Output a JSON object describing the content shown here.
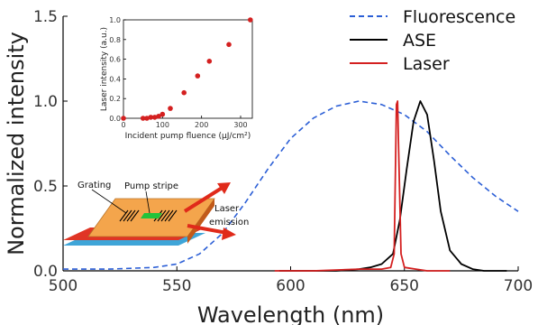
{
  "chart_data": [
    {
      "type": "line",
      "xlabel": "Wavelength (nm)",
      "ylabel": "Normalized intensity",
      "xlim": [
        500,
        700
      ],
      "ylim": [
        0,
        1.5
      ],
      "x_ticks": [
        "500",
        "550",
        "600",
        "650",
        "700"
      ],
      "y_ticks": [
        "0.0",
        "0.5",
        "1.0",
        "1.5"
      ],
      "legend_position": "top-right",
      "series": [
        {
          "name": "Fluorescence",
          "color": "#2c5fd6",
          "style": "dashed",
          "x": [
            500,
            520,
            540,
            550,
            560,
            570,
            580,
            590,
            600,
            610,
            620,
            630,
            640,
            650,
            660,
            670,
            680,
            690,
            700
          ],
          "y": [
            0.01,
            0.01,
            0.02,
            0.04,
            0.1,
            0.22,
            0.4,
            0.6,
            0.78,
            0.9,
            0.97,
            1.0,
            0.98,
            0.92,
            0.82,
            0.68,
            0.55,
            0.44,
            0.35
          ]
        },
        {
          "name": "ASE",
          "color": "#000000",
          "style": "solid",
          "x": [
            595,
            610,
            620,
            630,
            635,
            640,
            645,
            648,
            651,
            654,
            657,
            660,
            663,
            666,
            670,
            675,
            680,
            685,
            690,
            695
          ],
          "y": [
            0.0,
            0.0,
            0.0,
            0.01,
            0.02,
            0.04,
            0.1,
            0.3,
            0.6,
            0.88,
            1.0,
            0.92,
            0.65,
            0.35,
            0.12,
            0.04,
            0.01,
            0.0,
            0.0,
            0.0
          ]
        },
        {
          "name": "Laser",
          "color": "#d42020",
          "style": "solid",
          "x": [
            593,
            610,
            630,
            640,
            644,
            645.5,
            646.5,
            647,
            647.5,
            648.5,
            650,
            655,
            660,
            670
          ],
          "y": [
            0.0,
            0.0,
            0.01,
            0.01,
            0.02,
            0.1,
            0.98,
            1.0,
            0.7,
            0.1,
            0.02,
            0.01,
            0.0,
            0.0
          ]
        }
      ]
    },
    {
      "type": "scatter",
      "xlabel": "Incident pump fluence (µJ/cm²)",
      "ylabel": "Laser intensity (a.u.)",
      "xlim": [
        0,
        330
      ],
      "ylim": [
        0,
        1.0
      ],
      "x_ticks": [
        "0",
        "100",
        "200",
        "300"
      ],
      "y_ticks": [
        "0.0",
        "0.2",
        "0.4",
        "0.6",
        "0.8",
        "1.0"
      ],
      "series": [
        {
          "color": "#d42020",
          "x": [
            0,
            50,
            60,
            70,
            80,
            90,
            100,
            120,
            155,
            190,
            220,
            270,
            325
          ],
          "y": [
            0.0,
            0.0,
            0.0,
            0.01,
            0.01,
            0.02,
            0.04,
            0.1,
            0.26,
            0.43,
            0.58,
            0.75,
            1.0
          ]
        }
      ]
    }
  ],
  "device": {
    "grating_label": "Grating",
    "pump_label": "Pump stripe",
    "emission_label_line1": "Laser",
    "emission_label_line2": "emission"
  }
}
